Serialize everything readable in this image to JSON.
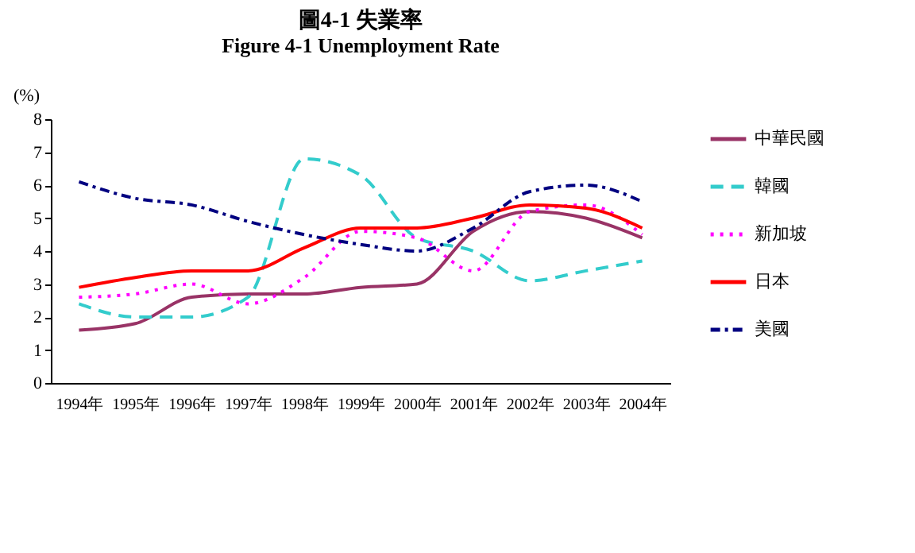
{
  "chart_data": {
    "type": "line",
    "title": "圖4-1 失業率",
    "subtitle": "Figure 4-1 Unemployment Rate",
    "ylabel": "(%)",
    "categories": [
      "1994年",
      "1995年",
      "1996年",
      "1997年",
      "1998年",
      "1999年",
      "2000年",
      "2001年",
      "2002年",
      "2003年",
      "2004年"
    ],
    "ylim": [
      0,
      8
    ],
    "yticks": [
      0,
      1,
      2,
      3,
      4,
      5,
      6,
      7,
      8
    ],
    "grid": false,
    "legend": "right",
    "marker": "none",
    "series": [
      {
        "name": "中華民國",
        "color": "#993366",
        "line_style": "solid",
        "values": [
          1.6,
          1.8,
          2.6,
          2.7,
          2.7,
          2.9,
          3.0,
          4.6,
          5.2,
          5.0,
          4.4
        ]
      },
      {
        "name": "韓國",
        "color": "#33cccc",
        "line_style": "dashed",
        "values": [
          2.4,
          2.0,
          2.0,
          2.6,
          6.8,
          6.3,
          4.4,
          4.0,
          3.1,
          3.4,
          3.7
        ]
      },
      {
        "name": "新加坡",
        "color": "#ff00ff",
        "line_style": "dotted",
        "values": [
          2.6,
          2.7,
          3.0,
          2.4,
          3.2,
          4.6,
          4.4,
          3.4,
          5.2,
          5.4,
          4.5
        ]
      },
      {
        "name": "日本",
        "color": "#ff0000",
        "line_style": "solid",
        "values": [
          2.9,
          3.2,
          3.4,
          3.4,
          4.1,
          4.7,
          4.7,
          5.0,
          5.4,
          5.3,
          4.7
        ]
      },
      {
        "name": "美國",
        "color": "#000080",
        "line_style": "dashdot",
        "values": [
          6.1,
          5.6,
          5.4,
          4.9,
          4.5,
          4.2,
          4.0,
          4.7,
          5.8,
          6.0,
          5.5
        ]
      }
    ]
  }
}
